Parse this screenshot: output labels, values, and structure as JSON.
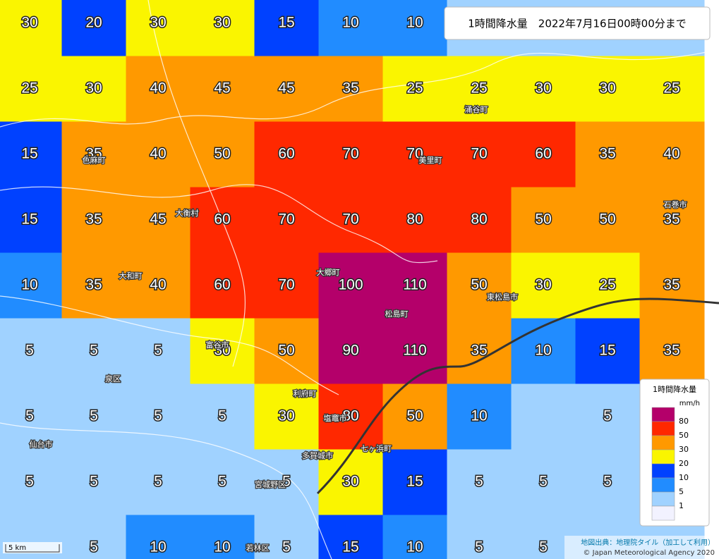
{
  "title": "1時間降水量　2022年7月16日00時00分まで",
  "grid": [
    [
      30,
      20,
      30,
      30,
      15,
      10,
      10,
      null,
      null,
      null,
      null
    ],
    [
      25,
      30,
      40,
      45,
      45,
      35,
      25,
      25,
      30,
      30,
      25
    ],
    [
      15,
      35,
      40,
      50,
      60,
      70,
      70,
      70,
      60,
      35,
      40
    ],
    [
      15,
      35,
      45,
      60,
      70,
      70,
      80,
      80,
      50,
      50,
      35
    ],
    [
      10,
      35,
      40,
      60,
      70,
      100,
      110,
      50,
      30,
      25,
      35
    ],
    [
      5,
      5,
      5,
      30,
      50,
      90,
      110,
      35,
      10,
      15,
      35
    ],
    [
      5,
      5,
      5,
      5,
      30,
      80,
      50,
      10,
      null,
      5,
      null
    ],
    [
      5,
      5,
      5,
      5,
      5,
      30,
      15,
      5,
      5,
      5,
      null
    ],
    [
      null,
      5,
      10,
      10,
      5,
      15,
      10,
      5,
      5,
      null,
      null
    ]
  ],
  "towns": [
    "美里町",
    "涌谷町",
    "色麻町",
    "大衡村",
    "大和町",
    "大郷町",
    "松島町",
    "東松島市",
    "石巻市",
    "富谷市",
    "利府町",
    "塩竈市",
    "七ヶ浜町",
    "多賀城市",
    "仙台市",
    "泉区",
    "宮城野区",
    "若林区"
  ],
  "legend": {
    "title": "1時間降水量",
    "unit": "mm/h",
    "items": [
      {
        "label": 80,
        "color": "#b4006a"
      },
      {
        "label": 50,
        "color": "#ff2800"
      },
      {
        "label": 30,
        "color": "#ff9900"
      },
      {
        "label": 20,
        "color": "#faf500"
      },
      {
        "label": 10,
        "color": "#0041ff"
      },
      {
        "label": 5,
        "color": "#218cff"
      },
      {
        "label": 1,
        "color": "#a0d2ff"
      }
    ],
    "base_color": "#f2f2ff"
  },
  "scale": "5 km",
  "attribution": [
    "地図出典：地理院タイル（加工して利用）",
    "© Japan Meteorological Agency 2020"
  ]
}
